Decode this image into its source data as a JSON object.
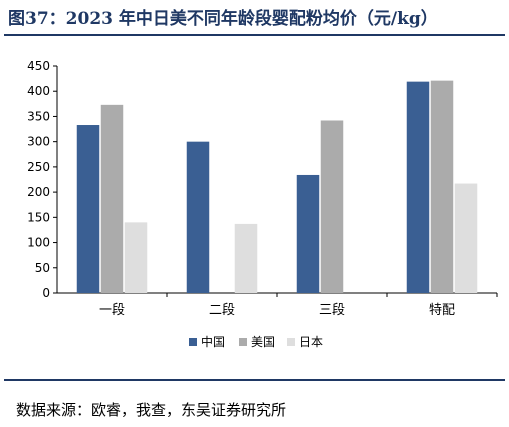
{
  "title": "图37：2023 年中日美不同年龄段婴配粉均价（元/kg）",
  "source": "数据来源：欧睿，我查，东吴证券研究所",
  "chart_data": {
    "type": "bar",
    "categories": [
      "一段",
      "二段",
      "三段",
      "特配"
    ],
    "series": [
      {
        "name": "中国",
        "values": [
          333,
          300,
          234,
          419
        ],
        "color": "#3a5f93"
      },
      {
        "name": "美国",
        "values": [
          373,
          null,
          342,
          421
        ],
        "color": "#ababab"
      },
      {
        "name": "日本",
        "values": [
          140,
          137,
          null,
          217
        ],
        "color": "#dedede"
      }
    ],
    "ylim": [
      0,
      450
    ],
    "yticks": [
      0,
      50,
      100,
      150,
      200,
      250,
      300,
      350,
      400,
      450
    ],
    "legend_position": "bottom",
    "grid": false
  }
}
